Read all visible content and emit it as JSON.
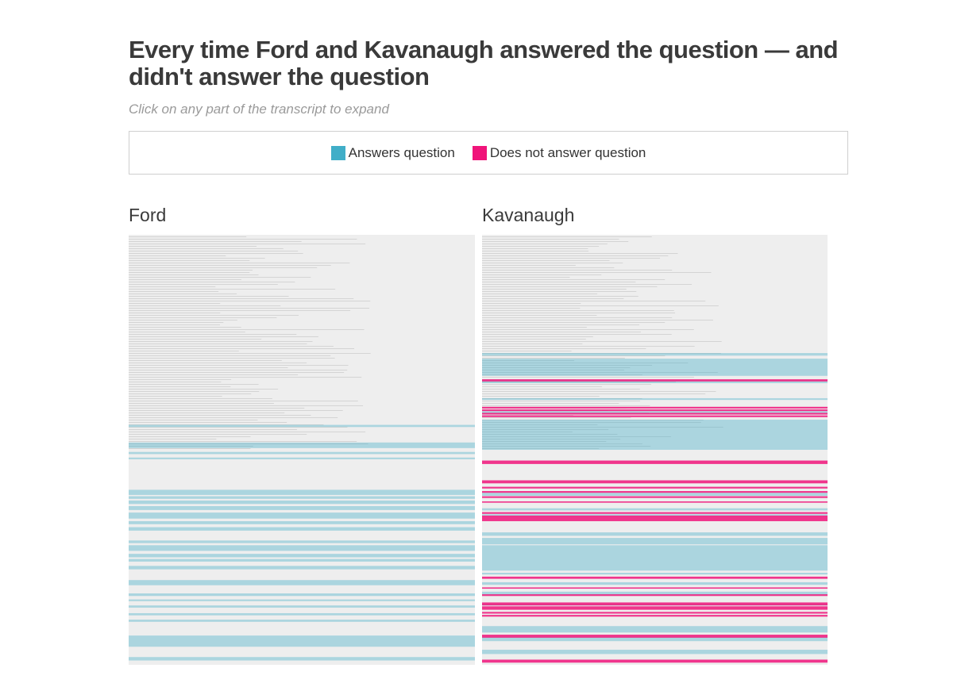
{
  "title": "Every time Ford and Kavanaugh answered the question — and didn't answer the question",
  "subtitle": "Click on any part of the transcript to expand",
  "legend": {
    "answers_label": "Answers question",
    "answers_color": "#40aec8",
    "not_answers_label": "Does not answer question",
    "not_answers_color": "#f0147a"
  },
  "panels": {
    "ford": {
      "name": "Ford",
      "answer_segments": [
        [
          0.442,
          0.447
        ],
        [
          0.483,
          0.496
        ],
        [
          0.505,
          0.51
        ],
        [
          0.518,
          0.522
        ],
        [
          0.593,
          0.605
        ],
        [
          0.608,
          0.614
        ],
        [
          0.618,
          0.626
        ],
        [
          0.631,
          0.64
        ],
        [
          0.646,
          0.66
        ],
        [
          0.666,
          0.673
        ],
        [
          0.68,
          0.688
        ],
        [
          0.711,
          0.717
        ],
        [
          0.722,
          0.735
        ],
        [
          0.742,
          0.75
        ],
        [
          0.754,
          0.76
        ],
        [
          0.77,
          0.778
        ],
        [
          0.803,
          0.815
        ],
        [
          0.834,
          0.84
        ],
        [
          0.848,
          0.852
        ],
        [
          0.862,
          0.867
        ],
        [
          0.88,
          0.885
        ],
        [
          0.895,
          0.9
        ],
        [
          0.932,
          0.958
        ],
        [
          0.982,
          0.99
        ]
      ],
      "not_answer_segments": []
    },
    "kavanaugh": {
      "name": "Kavanaugh",
      "answer_segments": [
        [
          0.275,
          0.281
        ],
        [
          0.288,
          0.328
        ],
        [
          0.338,
          0.345
        ],
        [
          0.38,
          0.384
        ],
        [
          0.41,
          0.415
        ],
        [
          0.43,
          0.5
        ],
        [
          0.6,
          0.607
        ],
        [
          0.636,
          0.641
        ],
        [
          0.65,
          0.654
        ],
        [
          0.692,
          0.7
        ],
        [
          0.705,
          0.72
        ],
        [
          0.722,
          0.781
        ],
        [
          0.786,
          0.79
        ],
        [
          0.808,
          0.814
        ],
        [
          0.83,
          0.838
        ],
        [
          0.858,
          0.862
        ],
        [
          0.91,
          0.925
        ],
        [
          0.935,
          0.945
        ],
        [
          0.965,
          0.975
        ]
      ],
      "not_answer_segments": [
        [
          0.336,
          0.341
        ],
        [
          0.4,
          0.404
        ],
        [
          0.406,
          0.41
        ],
        [
          0.414,
          0.418
        ],
        [
          0.42,
          0.424
        ],
        [
          0.525,
          0.533
        ],
        [
          0.571,
          0.578
        ],
        [
          0.586,
          0.59
        ],
        [
          0.596,
          0.6
        ],
        [
          0.608,
          0.612
        ],
        [
          0.62,
          0.623
        ],
        [
          0.645,
          0.649
        ],
        [
          0.653,
          0.666
        ],
        [
          0.795,
          0.8
        ],
        [
          0.82,
          0.823
        ],
        [
          0.836,
          0.84
        ],
        [
          0.855,
          0.862
        ],
        [
          0.864,
          0.872
        ],
        [
          0.877,
          0.881
        ],
        [
          0.884,
          0.888
        ],
        [
          0.93,
          0.937
        ],
        [
          0.988,
          0.995
        ]
      ]
    }
  }
}
